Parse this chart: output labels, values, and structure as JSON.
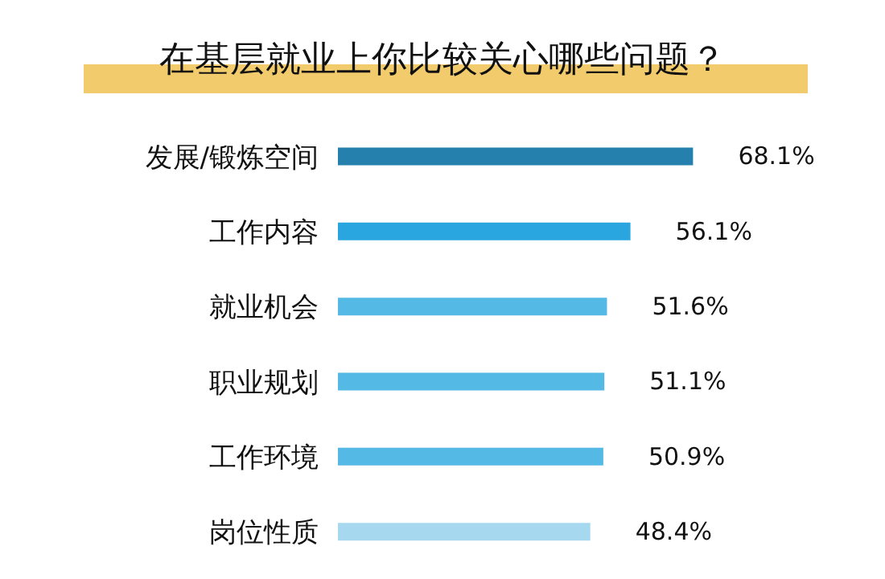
{
  "chart_data": {
    "type": "bar",
    "orientation": "horizontal",
    "title": "在基层就业上你比较关心哪些问题？",
    "categories": [
      "发展/锻炼空间",
      "工作内容",
      "就业机会",
      "职业规划",
      "工作环境",
      "岗位性质"
    ],
    "values": [
      68.1,
      56.1,
      51.6,
      51.1,
      50.9,
      48.4
    ],
    "value_labels": [
      "68.1%",
      "56.1%",
      "51.6%",
      "51.1%",
      "50.9%",
      "48.4%"
    ],
    "colors": [
      "#2580ae",
      "#29a6e0",
      "#55b9e6",
      "#55b9e6",
      "#55b9e6",
      "#a6d8f0"
    ]
  }
}
